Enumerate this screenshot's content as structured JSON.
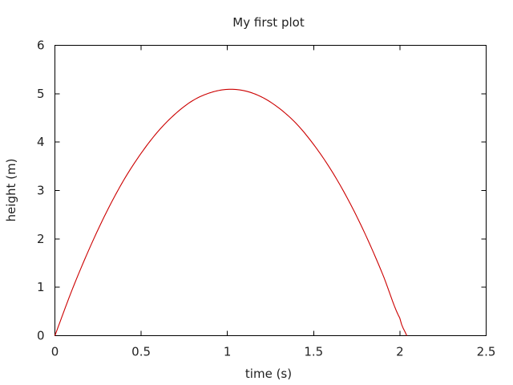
{
  "chart_data": {
    "type": "line",
    "title": "My first plot",
    "xlabel": "time (s)",
    "ylabel": "height (m)",
    "xlim": [
      0,
      2.5
    ],
    "ylim": [
      0,
      6
    ],
    "grid": false,
    "legend": "none",
    "x_ticks": [
      "0",
      "0.5",
      "1",
      "1.5",
      "2",
      "2.5"
    ],
    "y_ticks": [
      "0",
      "1",
      "2",
      "3",
      "4",
      "5",
      "6"
    ],
    "series": [
      {
        "color": "#cc0000",
        "x": [
          0,
          0.1,
          0.2,
          0.3,
          0.4,
          0.5,
          0.6,
          0.7,
          0.8,
          0.9,
          1.0,
          1.1,
          1.2,
          1.3,
          1.4,
          1.5,
          1.6,
          1.7,
          1.8,
          1.9,
          2.0,
          2.04
        ],
        "y": [
          0,
          0.95,
          1.8,
          2.56,
          3.22,
          3.77,
          4.23,
          4.59,
          4.86,
          5.02,
          5.09,
          5.06,
          4.93,
          4.7,
          4.38,
          3.95,
          3.43,
          2.81,
          2.09,
          1.27,
          0.36,
          0
        ]
      }
    ]
  }
}
